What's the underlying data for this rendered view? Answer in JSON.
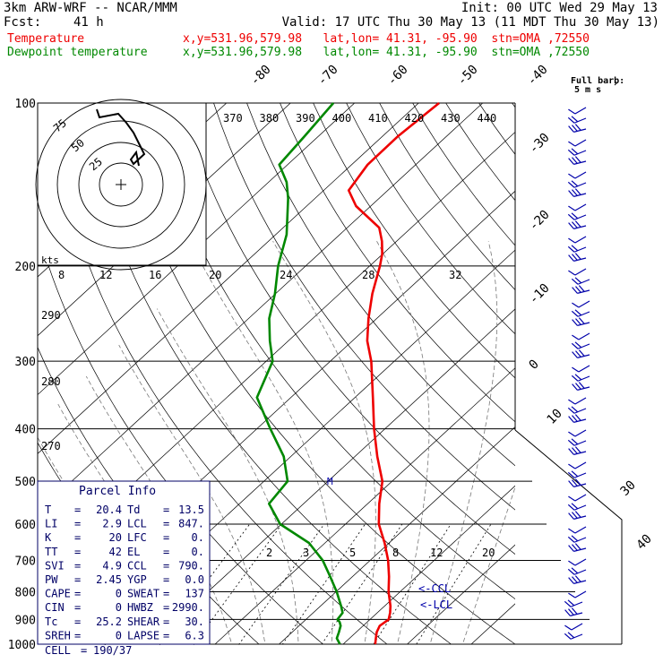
{
  "header": {
    "model": "3km ARW-WRF -- NCAR/MMM",
    "init": "Init: 00 UTC Wed 29 May 13",
    "fcst_label": "Fcst:",
    "fcst_value": "41 h",
    "valid": "Valid: 17 UTC Thu 30 May 13 (11 MDT Thu 30 May 13)",
    "temp_legend": "Temperature",
    "temp_info": "x,y=531.96,579.98   lat,lon= 41.31, -95.90  stn=OMA ,72550",
    "dew_legend": "Dewpoint temperature",
    "dew_info": "x,y=531.96,579.98   lat,lon= 41.31, -95.90  stn=OMA ,72550"
  },
  "colors": {
    "temperature": "#ee0000",
    "dewpoint": "#008800",
    "parcel_box": "#000066",
    "wind_barbs": "#0000aa"
  },
  "chart_data": {
    "type": "line",
    "subtype": "skew-T log-P sounding",
    "y_scale": "log",
    "ylabel": "",
    "xlabel": "",
    "pressure_ticks": [
      100,
      200,
      300,
      400,
      500,
      600,
      700,
      800,
      900,
      1000
    ],
    "pressure_range": [
      1000,
      100
    ],
    "isotherm_labels": [
      -80,
      -70,
      -60,
      -50,
      -40,
      -30,
      -20,
      -10,
      0,
      10,
      30,
      40
    ],
    "theta_labels": [
      370,
      380,
      390,
      400,
      410,
      420,
      430,
      440
    ],
    "left_theta_labels": [
      290,
      280,
      270
    ],
    "mixing_ratio_labels": [
      2,
      3,
      5,
      8,
      12,
      20
    ],
    "hodo_speed_ticks": [
      8,
      12,
      16,
      20,
      24,
      28,
      32
    ],
    "hodo_ring_labels": [
      25,
      50,
      75
    ],
    "hodo_units": "kts",
    "barb_legend": [
      "Full barb:",
      "5 m s"
    ],
    "series": [
      {
        "name": "Temperature",
        "points": [
          [
            1000,
            25.0
          ],
          [
            975,
            24.1
          ],
          [
            950,
            23.2
          ],
          [
            925,
            22.6
          ],
          [
            900,
            22.9
          ],
          [
            875,
            22.0
          ],
          [
            850,
            20.9
          ],
          [
            800,
            18.2
          ],
          [
            750,
            15.7
          ],
          [
            700,
            12.8
          ],
          [
            650,
            9.3
          ],
          [
            600,
            5.2
          ],
          [
            550,
            1.8
          ],
          [
            500,
            -1.5
          ],
          [
            450,
            -6.5
          ],
          [
            400,
            -11.7
          ],
          [
            350,
            -17.2
          ],
          [
            300,
            -23.6
          ],
          [
            275,
            -27.7
          ],
          [
            250,
            -31.3
          ],
          [
            225,
            -34.9
          ],
          [
            200,
            -38.4
          ],
          [
            190,
            -40.1
          ],
          [
            180,
            -42.3
          ],
          [
            170,
            -45.0
          ],
          [
            155,
            -52.3
          ],
          [
            145,
            -56.1
          ],
          [
            130,
            -57.5
          ],
          [
            115,
            -57.6
          ],
          [
            100,
            -56.8
          ]
        ]
      },
      {
        "name": "Dewpoint temperature",
        "points": [
          [
            1000,
            19.5
          ],
          [
            975,
            18.0
          ],
          [
            950,
            17.3
          ],
          [
            925,
            16.5
          ],
          [
            910,
            15.7
          ],
          [
            900,
            14.9
          ],
          [
            875,
            14.6
          ],
          [
            850,
            13.2
          ],
          [
            800,
            10.1
          ],
          [
            750,
            6.5
          ],
          [
            700,
            2.6
          ],
          [
            650,
            -2.5
          ],
          [
            600,
            -10.2
          ],
          [
            550,
            -15.4
          ],
          [
            500,
            -16.3
          ],
          [
            450,
            -21.1
          ],
          [
            400,
            -27.9
          ],
          [
            350,
            -35.3
          ],
          [
            300,
            -39.0
          ],
          [
            275,
            -42.9
          ],
          [
            250,
            -46.8
          ],
          [
            225,
            -50.1
          ],
          [
            200,
            -54.3
          ],
          [
            175,
            -58.3
          ],
          [
            150,
            -64.2
          ],
          [
            140,
            -67.2
          ],
          [
            130,
            -71.3
          ],
          [
            115,
            -72.2
          ],
          [
            100,
            -73.3
          ]
        ]
      }
    ],
    "levels_annotated": [
      "<-CCL",
      "<-LCL",
      "M"
    ]
  },
  "parcel_info": {
    "title": "Parcel Info",
    "rows": [
      [
        "T",
        "20.4",
        "Td",
        "13.5"
      ],
      [
        "LI",
        "2.9",
        "LCL",
        "847."
      ],
      [
        "K",
        "20",
        "LFC",
        "0."
      ],
      [
        "TT",
        "42",
        "EL",
        "0."
      ],
      [
        "SVI",
        "4.9",
        "CCL",
        "790."
      ],
      [
        "PW",
        "2.45",
        "YGP",
        "0.0"
      ],
      [
        "CAPE",
        "0",
        "SWEAT",
        "137"
      ],
      [
        "CIN",
        "0",
        "HWBZ",
        "2990."
      ],
      [
        "Tc",
        "25.2",
        "SHEAR",
        "30."
      ],
      [
        "SREH",
        "0",
        "LAPSE",
        "6.3"
      ]
    ],
    "cell_label": "CELL",
    "cell_value": "190/37"
  }
}
